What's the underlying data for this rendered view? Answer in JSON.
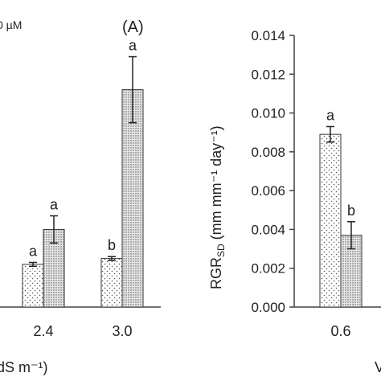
{
  "chart_data": [
    {
      "type": "bar",
      "panel_label": "(A)",
      "legend_text": "0 µM",
      "xlabel": "dS m⁻¹)",
      "categories": [
        "2.4",
        "3.0"
      ],
      "series": [
        {
          "pattern": "sparse-dots",
          "values": [
            0.0022,
            0.0025
          ],
          "errors": [
            0.0001,
            0.0001
          ],
          "letters": [
            "a",
            "b"
          ]
        },
        {
          "pattern": "dense-dots",
          "values": [
            0.004,
            0.0112
          ],
          "errors": [
            0.0007,
            0.0017
          ],
          "letters": [
            "a",
            "a"
          ]
        }
      ],
      "ylim": [
        0,
        0.014
      ]
    },
    {
      "type": "bar",
      "ylabel_main": "RGR",
      "ylabel_sub": "SD",
      "ylabel_rest": " (mm mm⁻¹ day⁻¹)",
      "xlabel": "V",
      "yticks": [
        "0.000",
        "0.002",
        "0.004",
        "0.006",
        "0.008",
        "0.010",
        "0.012",
        "0.014"
      ],
      "ytick_values": [
        0,
        0.002,
        0.004,
        0.006,
        0.008,
        0.01,
        0.012,
        0.014
      ],
      "ylim": [
        0,
        0.014
      ],
      "categories": [
        "0.6"
      ],
      "series": [
        {
          "pattern": "sparse-dots",
          "values": [
            0.0089
          ],
          "errors": [
            0.0004
          ],
          "letters": [
            "a"
          ]
        },
        {
          "pattern": "dense-dots",
          "values": [
            0.0037
          ],
          "errors": [
            0.0007
          ],
          "letters": [
            "b"
          ]
        }
      ]
    }
  ]
}
